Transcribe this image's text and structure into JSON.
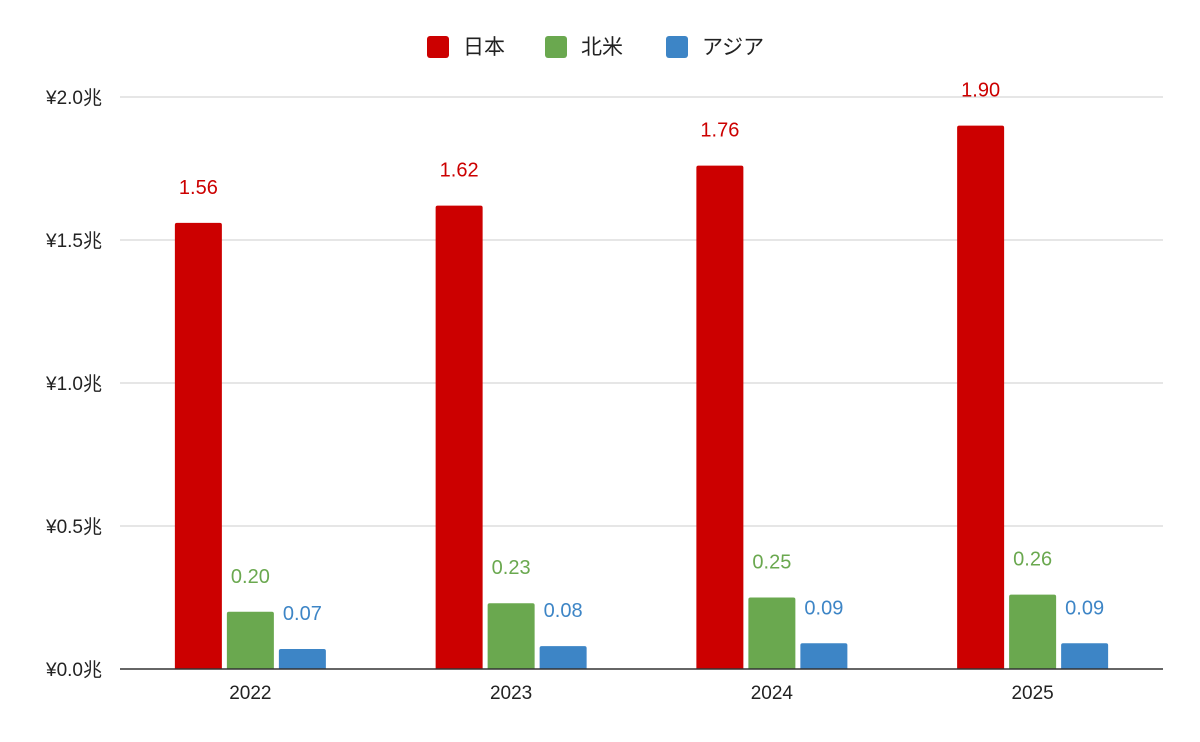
{
  "chart_data": {
    "type": "bar",
    "categories": [
      "2022",
      "2023",
      "2024",
      "2025"
    ],
    "series": [
      {
        "name": "日本",
        "color": "#cc0000",
        "values": [
          1.56,
          1.62,
          1.76,
          1.9
        ],
        "labels": [
          "1.56",
          "1.62",
          "1.76",
          "1.90"
        ]
      },
      {
        "name": "北米",
        "color": "#6aa84f",
        "values": [
          0.2,
          0.23,
          0.25,
          0.26
        ],
        "labels": [
          "0.20",
          "0.23",
          "0.25",
          "0.26"
        ]
      },
      {
        "name": "アジア",
        "color": "#3d85c6",
        "values": [
          0.07,
          0.08,
          0.09,
          0.09
        ],
        "labels": [
          "0.07",
          "0.08",
          "0.09",
          "0.09"
        ]
      }
    ],
    "y_ticks": [
      {
        "value": 0.0,
        "label": "¥0.0兆"
      },
      {
        "value": 0.5,
        "label": "¥0.5兆"
      },
      {
        "value": 1.0,
        "label": "¥1.0兆"
      },
      {
        "value": 1.5,
        "label": "¥1.5兆"
      },
      {
        "value": 2.0,
        "label": "¥2.0兆"
      }
    ],
    "ylim": [
      0,
      2.0
    ],
    "title": "",
    "xlabel": "",
    "ylabel": "",
    "grid": true,
    "legend_position": "top-center"
  }
}
